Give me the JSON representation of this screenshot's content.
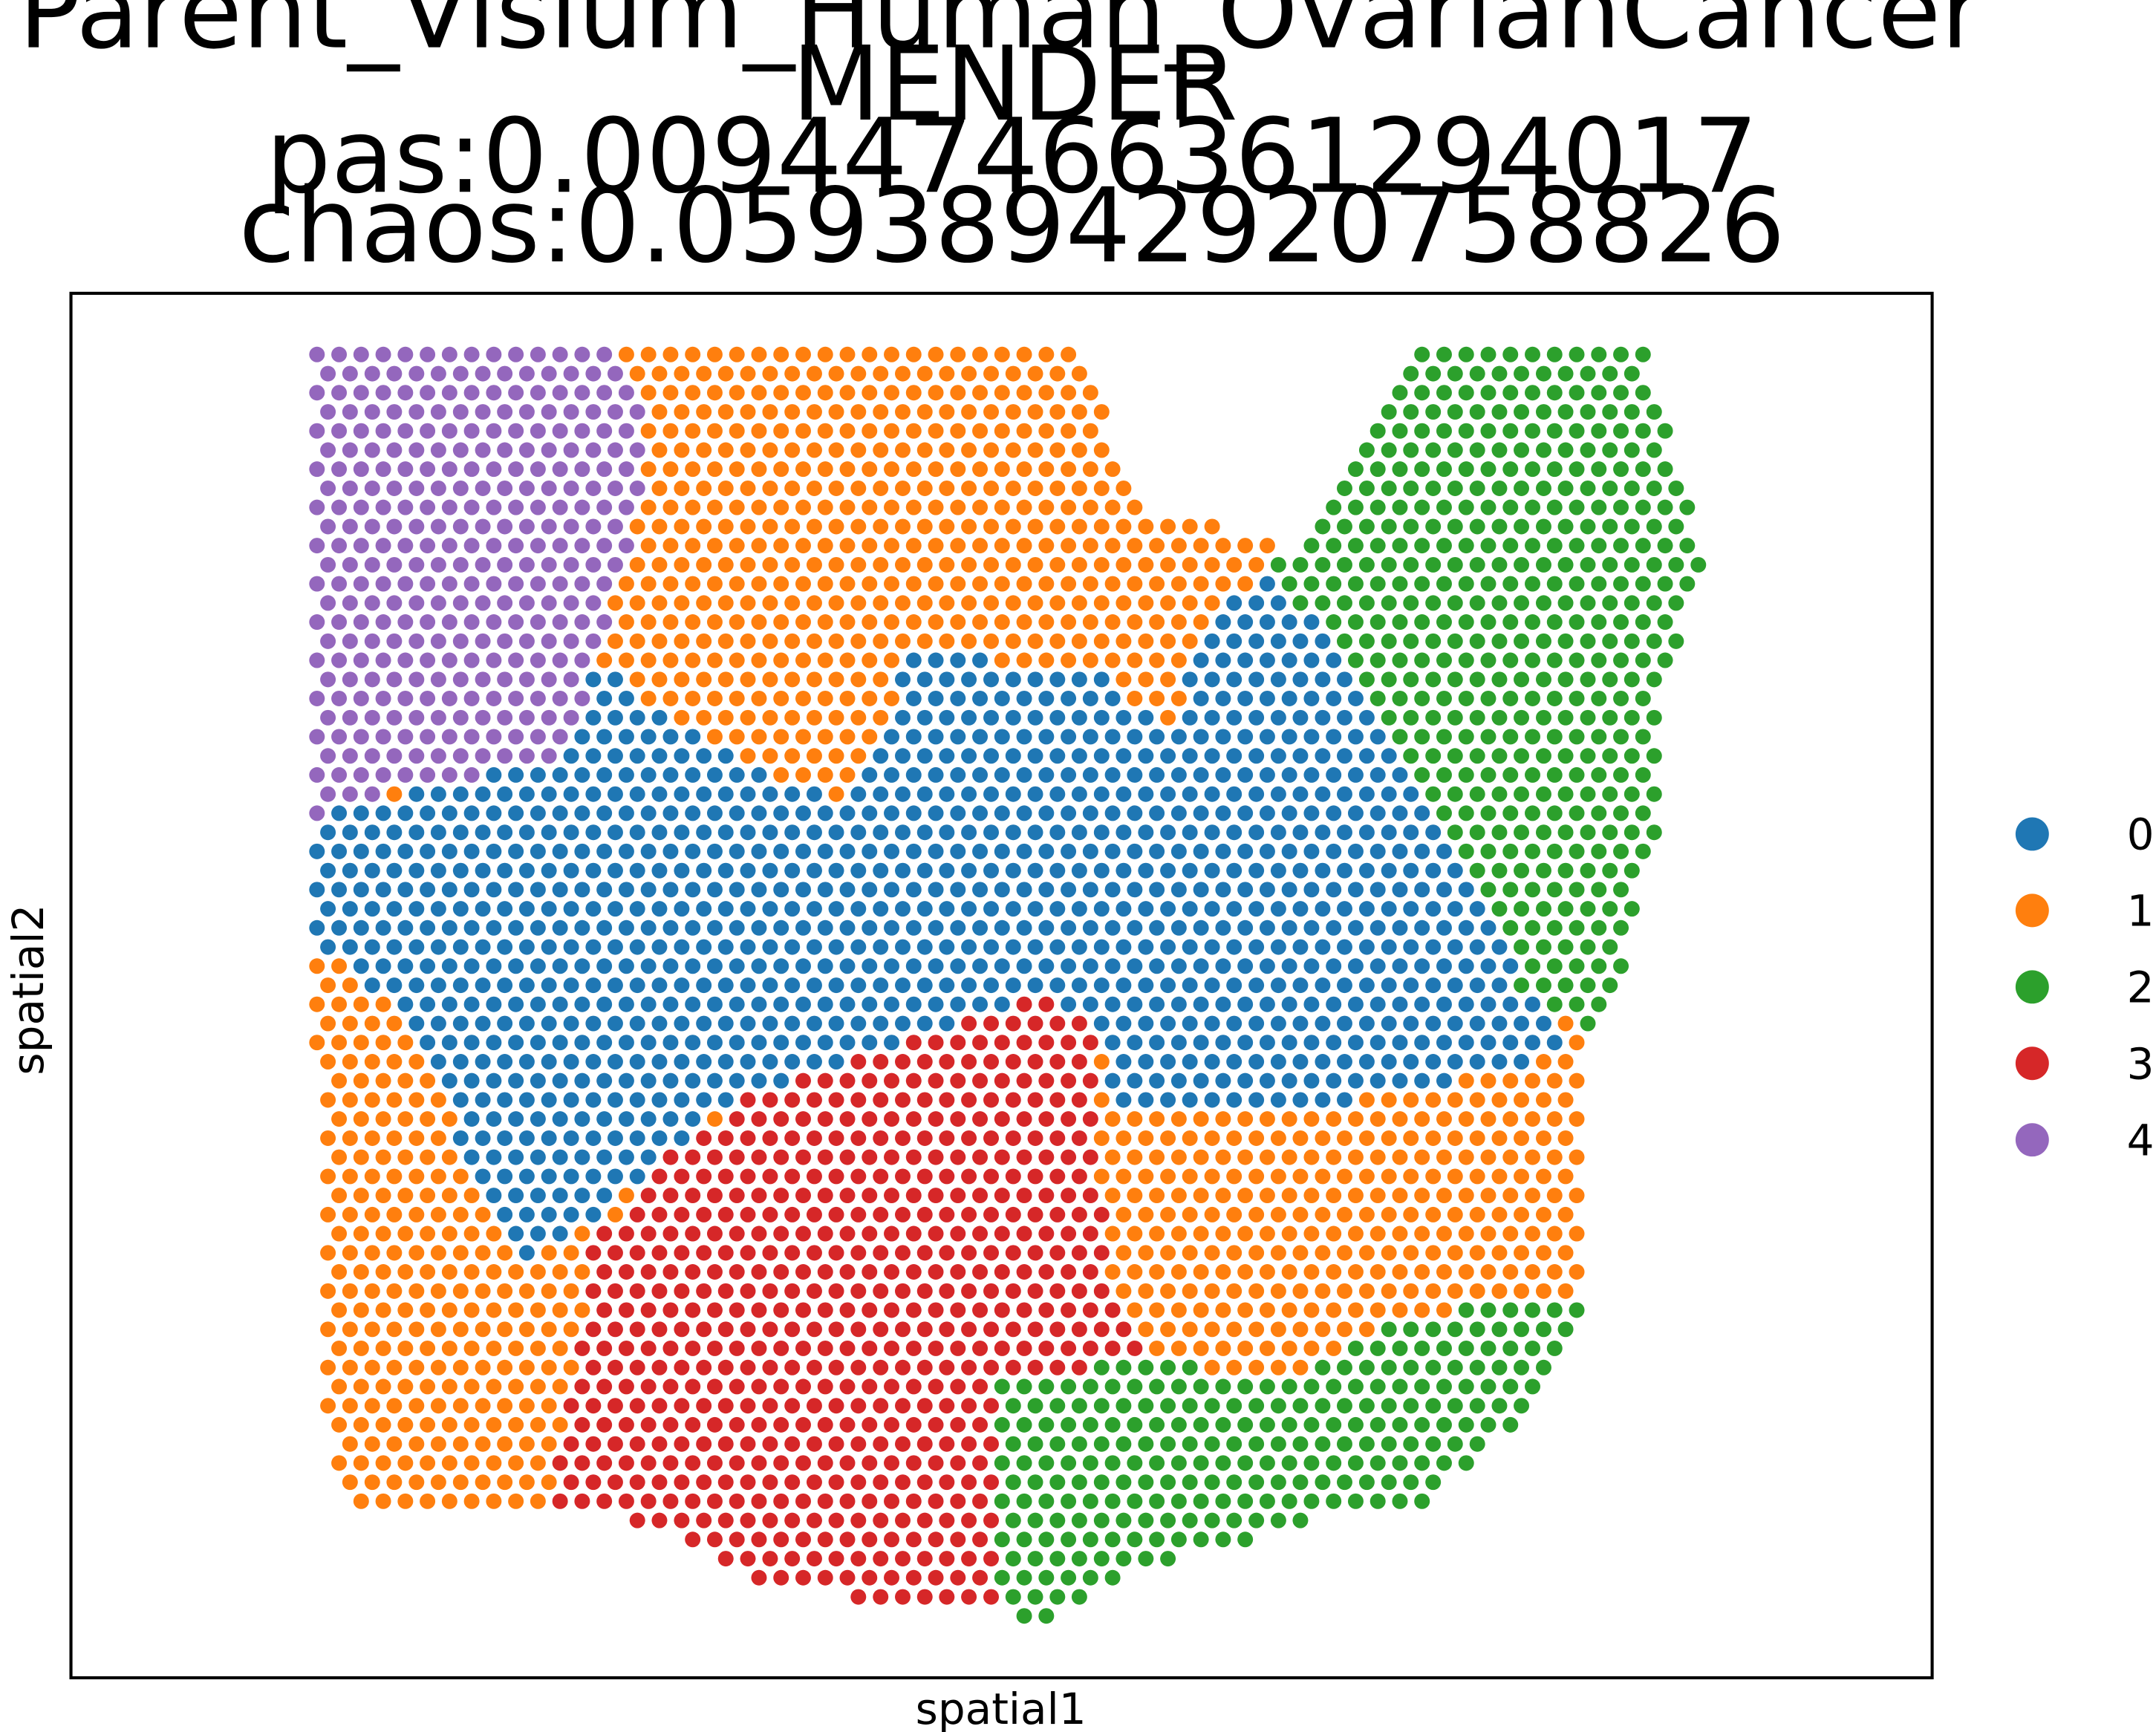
{
  "chart_data": {
    "type": "scatter",
    "title_lines": [
      "Parent_Visium_Human_OvarianCancer",
      "MENDER",
      "pas:0.009447466361294017",
      "chaos:0.05938942920758826"
    ],
    "xlabel": "spatial1",
    "ylabel": "spatial2",
    "ticks_visible": false,
    "grid": false,
    "legend_placement": "right-outside",
    "spot_layout": "hexagonal",
    "legend": [
      {
        "label": "0",
        "color": "#1f77b4"
      },
      {
        "label": "1",
        "color": "#ff7f0e"
      },
      {
        "label": "2",
        "color": "#2ca02c"
      },
      {
        "label": "3",
        "color": "#d62728"
      },
      {
        "label": "4",
        "color": "#9467bd"
      }
    ],
    "tissue_outline": [
      [
        220,
        252
      ],
      [
        770,
        252
      ],
      [
        800,
        310
      ],
      [
        820,
        365
      ],
      [
        880,
        375
      ],
      [
        935,
        405
      ],
      [
        1010,
        250
      ],
      [
        1185,
        250
      ],
      [
        1225,
        405
      ],
      [
        1195,
        500
      ],
      [
        1190,
        600
      ],
      [
        1165,
        700
      ],
      [
        1140,
        740
      ],
      [
        1140,
        930
      ],
      [
        1110,
        1010
      ],
      [
        1025,
        1085
      ],
      [
        940,
        1095
      ],
      [
        820,
        1130
      ],
      [
        750,
        1165
      ],
      [
        640,
        1155
      ],
      [
        555,
        1140
      ],
      [
        440,
        1085
      ],
      [
        250,
        1080
      ],
      [
        235,
        1025
      ],
      [
        225,
        660
      ],
      [
        220,
        590
      ]
    ],
    "cluster_regions": [
      {
        "label": "4",
        "polygon": [
          [
            215,
            240
          ],
          [
            435,
            240
          ],
          [
            465,
            290
          ],
          [
            460,
            370
          ],
          [
            425,
            480
          ],
          [
            415,
            540
          ],
          [
            330,
            560
          ],
          [
            240,
            580
          ],
          [
            215,
            600
          ]
        ]
      },
      {
        "label": "2",
        "polygon": [
          [
            950,
            240
          ],
          [
            1250,
            240
          ],
          [
            1250,
            780
          ],
          [
            1100,
            720
          ],
          [
            1000,
            520
          ],
          [
            930,
            430
          ],
          [
            910,
            410
          ]
        ]
      },
      {
        "label": "2",
        "polygon": [
          [
            720,
            990
          ],
          [
            820,
            980
          ],
          [
            940,
            990
          ],
          [
            970,
            960
          ],
          [
            1060,
            940
          ],
          [
            1140,
            930
          ],
          [
            1140,
            1200
          ],
          [
            720,
            1200
          ]
        ]
      },
      {
        "label": "3",
        "polygon": [
          [
            750,
            715
          ],
          [
            790,
            740
          ],
          [
            790,
            830
          ],
          [
            800,
            920
          ],
          [
            830,
            1000
          ],
          [
            720,
            990
          ],
          [
            730,
            1170
          ],
          [
            560,
            1170
          ],
          [
            400,
            1100
          ],
          [
            395,
            1050
          ],
          [
            415,
            990
          ],
          [
            425,
            900
          ],
          [
            470,
            840
          ],
          [
            535,
            790
          ]
        ]
      },
      {
        "label": "0",
        "polygon": [
          [
            215,
            590
          ],
          [
            330,
            560
          ],
          [
            430,
            480
          ],
          [
            520,
            540
          ],
          [
            600,
            575
          ],
          [
            660,
            470
          ],
          [
            780,
            480
          ],
          [
            840,
            520
          ],
          [
            880,
            440
          ],
          [
            930,
            400
          ],
          [
            1000,
            520
          ],
          [
            1100,
            720
          ],
          [
            1130,
            740
          ],
          [
            1110,
            760
          ],
          [
            1030,
            780
          ],
          [
            920,
            800
          ],
          [
            800,
            800
          ],
          [
            790,
            740
          ],
          [
            750,
            715
          ],
          [
            530,
            790
          ],
          [
            470,
            840
          ],
          [
            430,
            880
          ],
          [
            380,
            910
          ],
          [
            330,
            820
          ],
          [
            290,
            720
          ],
          [
            250,
            700
          ],
          [
            215,
            660
          ]
        ]
      }
    ],
    "default_cluster": "1"
  }
}
